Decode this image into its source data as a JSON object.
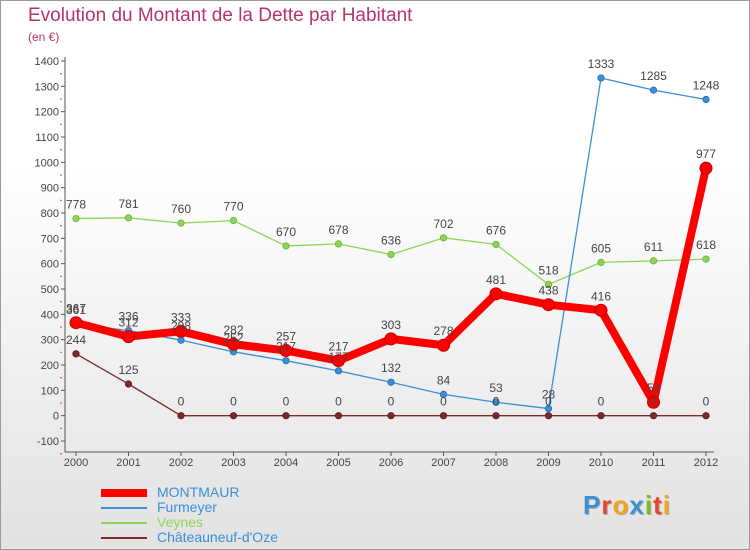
{
  "title": "Evolution du Montant de la Dette par Habitant",
  "unit": "(en €)",
  "logo": {
    "text": "Proxiti",
    "letter_colors": [
      "#3a8fd6",
      "#e8452c",
      "#f2a51c",
      "#3a8fd6",
      "#78b828",
      "#e8452c",
      "#f2a51c"
    ]
  },
  "chart_data": {
    "type": "line",
    "x": [
      "2000",
      "2001",
      "2002",
      "2003",
      "2004",
      "2005",
      "2006",
      "2007",
      "2008",
      "2009",
      "2010",
      "2011",
      "2012"
    ],
    "ylim": [
      -100,
      1400
    ],
    "yticks": [
      "1400",
      "1300",
      "1200",
      "1100",
      "1000",
      "900",
      "800",
      "700",
      "600",
      "500",
      "400",
      "300",
      "200",
      "100",
      "0",
      "-100"
    ],
    "grid": false,
    "legend_position": "bottom-left",
    "series": [
      {
        "name": "MONTMAUR",
        "color": "#ff0000",
        "values": [
          367,
          312,
          333,
          282,
          257,
          217,
          303,
          278,
          481,
          438,
          416,
          53,
          977
        ],
        "labels": [
          "367",
          "312",
          "333",
          "282",
          "257",
          "217",
          "303",
          "278",
          "481",
          "438",
          "416",
          "53",
          "977"
        ]
      },
      {
        "name": "Furmeyer",
        "color": "#3a8fd6",
        "values": [
          361,
          336,
          298,
          252,
          217,
          177,
          132,
          84,
          53,
          28,
          1333,
          1285,
          1248
        ],
        "labels": [
          "361",
          "336",
          "298",
          "252",
          "217",
          "177",
          "132",
          "84",
          "53",
          "28",
          "1333",
          "1285",
          "1248"
        ]
      },
      {
        "name": "Veynes",
        "color": "#8ed45a",
        "values": [
          778,
          781,
          760,
          770,
          670,
          678,
          636,
          702,
          676,
          518,
          605,
          611,
          618
        ],
        "labels": [
          "778",
          "781",
          "760",
          "770",
          "670",
          "678",
          "636",
          "702",
          "676",
          "518",
          "605",
          "611",
          "618"
        ]
      },
      {
        "name": "Châteauneuf-d'Oze",
        "color": "#7a2a2a",
        "values": [
          244,
          125,
          0,
          0,
          0,
          0,
          0,
          0,
          0,
          0,
          0,
          0,
          0
        ],
        "labels": [
          "244",
          "125",
          "0",
          "0",
          "0",
          "0",
          "0",
          "0",
          "0",
          "0",
          "0",
          "0",
          "0"
        ]
      }
    ]
  }
}
